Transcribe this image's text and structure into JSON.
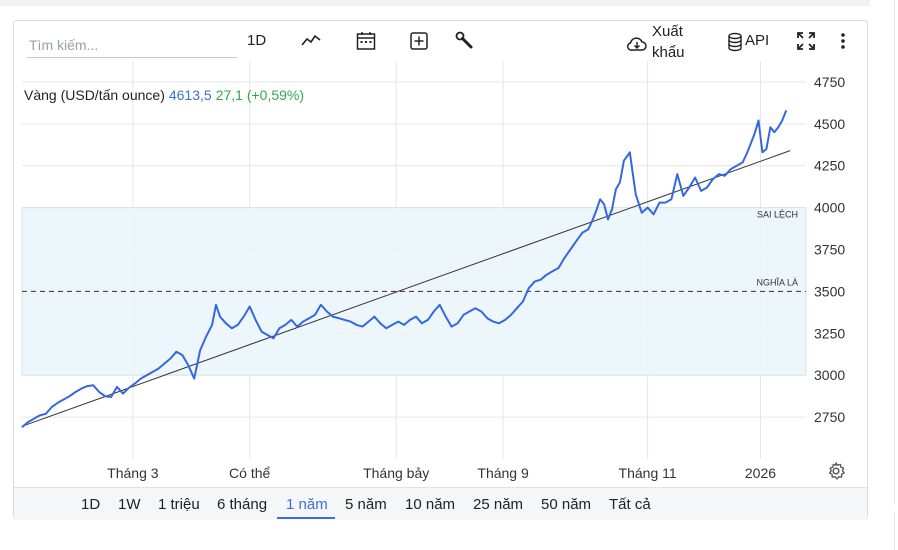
{
  "toolbar": {
    "search_placeholder": "Tìm kiếm...",
    "interval": "1D",
    "export_line1": "Xuất",
    "export_line2": "khẩu",
    "api": "API"
  },
  "legend": {
    "name": "Vàng (USD/tấn ounce)",
    "price": "4613,5",
    "change": "27,1 (+0,59%)"
  },
  "ranges": {
    "items": [
      "1D",
      "1W",
      "1 triệu",
      "6 tháng",
      "1 năm",
      "5 năm",
      "10 năm",
      "25 năm",
      "50 năm",
      "Tất cả"
    ],
    "active_index": 4
  },
  "colors": {
    "line": "#3568e0",
    "band": "#eaf4fa",
    "trend": "#333333",
    "accent": "#3d6fd6",
    "up": "#2fa84f"
  },
  "icons": [
    "line-chart-icon",
    "calendar-icon",
    "add-box-icon",
    "wrench-icon",
    "cloud-download-icon",
    "database-icon",
    "fullscreen-icon",
    "more-vert-icon",
    "settings-gear-icon"
  ],
  "chart_data": {
    "type": "line",
    "title": "Vàng (USD/tấn ounce)",
    "ylim": [
      2500,
      4875
    ],
    "yticks": [
      2750,
      3000,
      3250,
      3500,
      3750,
      4000,
      4250,
      4500,
      4750
    ],
    "ytick_labels": [
      "2750",
      "3000",
      "3250",
      "3500",
      "3750",
      "4000",
      "4250",
      "4500",
      "4750"
    ],
    "xlim": [
      0,
      396
    ],
    "xtick_positions": [
      56,
      115,
      189,
      243,
      316,
      373
    ],
    "xtick_labels": [
      "Tháng 3",
      "Có thể",
      "Tháng bảy",
      "Tháng 9",
      "Tháng 11",
      "2026"
    ],
    "grid": true,
    "band": {
      "low": 3000,
      "high": 4000,
      "label": "SAI LỆCH"
    },
    "mean": {
      "value": 3500,
      "label": "NGHĨA LÀ"
    },
    "trend": {
      "x": [
        0,
        388
      ],
      "y": [
        2695,
        4340
      ]
    },
    "series": [
      {
        "x": [
          0,
          3,
          6,
          9,
          12,
          15,
          18,
          21,
          24,
          27,
          30,
          33,
          36,
          39,
          42,
          45,
          48,
          51,
          54,
          57,
          60,
          63,
          66,
          69,
          72,
          75,
          78,
          81,
          84,
          87,
          90,
          93,
          96,
          98,
          100,
          103,
          106,
          109,
          112,
          115,
          118,
          121,
          124,
          127,
          130,
          133,
          136,
          139,
          142,
          145,
          148,
          151,
          154,
          157,
          160,
          163,
          166,
          169,
          172,
          175,
          178,
          181,
          184,
          187,
          190,
          193,
          196,
          199,
          202,
          205,
          208,
          211,
          214,
          217,
          220,
          223,
          226,
          229,
          232,
          235,
          238,
          241,
          244,
          247,
          250,
          253,
          256,
          259,
          262,
          265,
          268,
          271,
          274,
          277,
          280,
          283,
          286,
          288,
          290,
          292,
          294,
          296,
          298,
          300,
          302,
          304,
          307,
          310,
          313,
          316,
          319,
          322,
          325,
          328,
          331,
          334,
          337,
          340,
          343,
          346,
          349,
          352,
          355,
          358,
          361,
          364,
          366,
          368,
          370,
          372,
          374,
          376,
          378,
          380,
          382,
          384,
          386
        ],
        "y": [
          2690,
          2720,
          2740,
          2760,
          2770,
          2810,
          2835,
          2855,
          2875,
          2900,
          2920,
          2935,
          2940,
          2900,
          2875,
          2870,
          2930,
          2890,
          2925,
          2950,
          2980,
          3000,
          3020,
          3040,
          3070,
          3100,
          3140,
          3120,
          3060,
          2980,
          3150,
          3230,
          3300,
          3420,
          3350,
          3310,
          3280,
          3300,
          3350,
          3410,
          3330,
          3260,
          3240,
          3220,
          3280,
          3300,
          3330,
          3290,
          3320,
          3340,
          3360,
          3420,
          3380,
          3350,
          3340,
          3330,
          3320,
          3300,
          3290,
          3320,
          3350,
          3310,
          3280,
          3300,
          3320,
          3300,
          3330,
          3350,
          3310,
          3330,
          3380,
          3420,
          3350,
          3290,
          3310,
          3360,
          3380,
          3400,
          3380,
          3340,
          3320,
          3310,
          3330,
          3360,
          3400,
          3440,
          3520,
          3560,
          3570,
          3600,
          3620,
          3640,
          3700,
          3750,
          3800,
          3850,
          3870,
          3920,
          3980,
          4050,
          4020,
          3930,
          3990,
          4110,
          4150,
          4280,
          4330,
          4080,
          3970,
          4000,
          3960,
          4030,
          4030,
          4050,
          4200,
          4070,
          4120,
          4180,
          4100,
          4120,
          4170,
          4200,
          4190,
          4230,
          4250,
          4270,
          4320,
          4380,
          4440,
          4520,
          4330,
          4350,
          4480,
          4450,
          4480,
          4520,
          4580
        ]
      }
    ]
  }
}
